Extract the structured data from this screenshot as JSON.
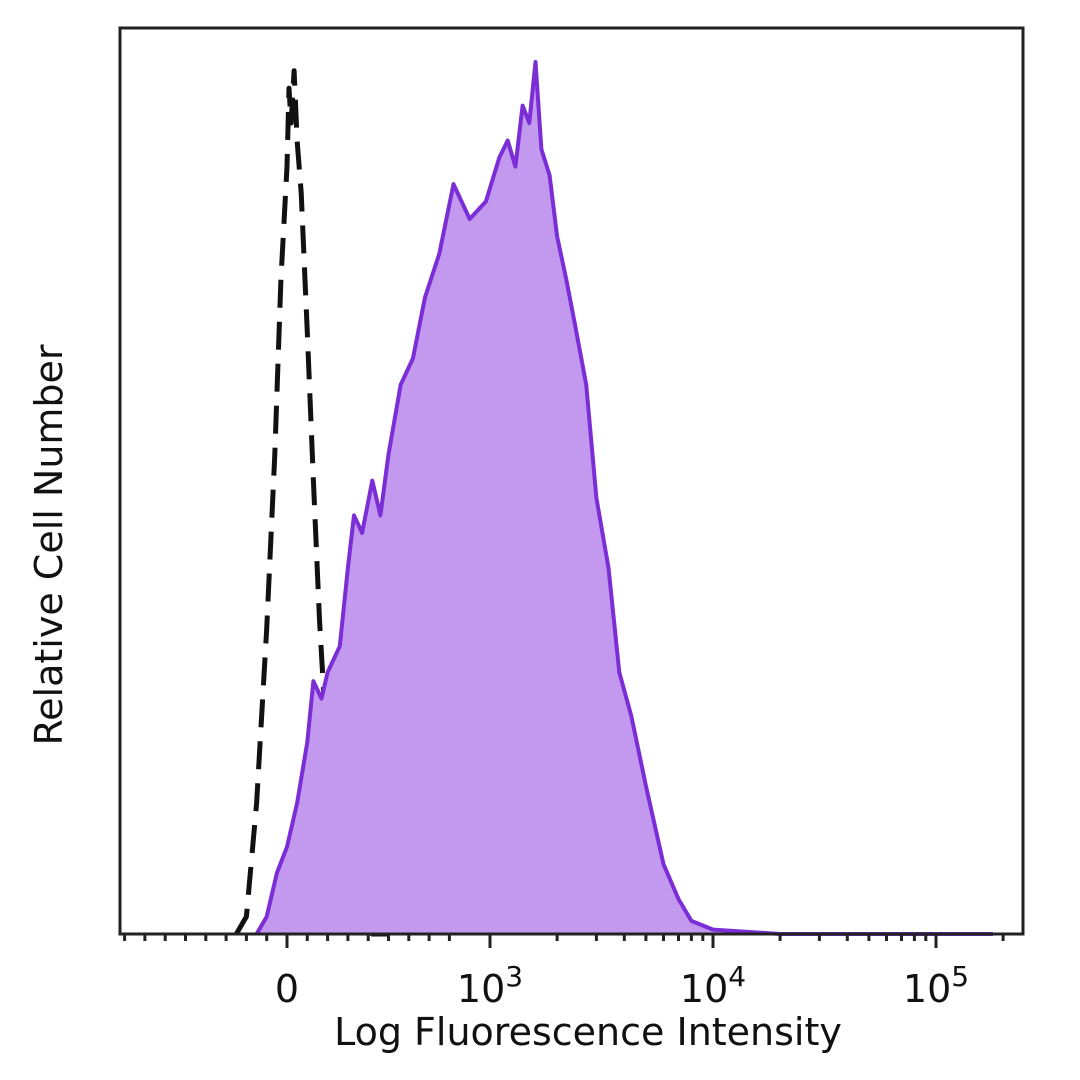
{
  "chart_data": {
    "type": "area",
    "title": "",
    "xlabel": "Log Fluorescence Intensity",
    "ylabel": "Relative Cell Number",
    "x_scale": "biexponential",
    "x_ticks": [
      {
        "value": 0,
        "base": "0",
        "exp": ""
      },
      {
        "value": 1000,
        "base": "10",
        "exp": "3"
      },
      {
        "value": 10000,
        "base": "10",
        "exp": "4"
      },
      {
        "value": 100000,
        "base": "10",
        "exp": "5"
      }
    ],
    "xlim": [
      -1000,
      200000
    ],
    "ylim": [
      0,
      1
    ],
    "y_ticks_shown": false,
    "grid": false,
    "legend": "none",
    "series": [
      {
        "style": "dashed-black-outline",
        "color": "#111111",
        "points": [
          [
            -250,
            0
          ],
          [
            -200,
            0.02
          ],
          [
            -150,
            0.15
          ],
          [
            -100,
            0.35
          ],
          [
            -60,
            0.55
          ],
          [
            -30,
            0.75
          ],
          [
            0,
            0.88
          ],
          [
            10,
            0.97
          ],
          [
            20,
            0.93
          ],
          [
            35,
            0.99
          ],
          [
            50,
            0.91
          ],
          [
            70,
            0.85
          ],
          [
            100,
            0.69
          ],
          [
            130,
            0.52
          ],
          [
            160,
            0.36
          ],
          [
            200,
            0.2
          ],
          [
            250,
            0.1
          ],
          [
            300,
            0.04
          ],
          [
            350,
            0.02
          ],
          [
            420,
            0.0
          ],
          [
            500,
            0.0
          ]
        ]
      },
      {
        "style": "filled",
        "color": "#7b2ed6",
        "fill": "#c398ef",
        "points": [
          [
            -150,
            0
          ],
          [
            -100,
            0.02
          ],
          [
            -50,
            0.07
          ],
          [
            0,
            0.1
          ],
          [
            50,
            0.15
          ],
          [
            100,
            0.22
          ],
          [
            130,
            0.29
          ],
          [
            170,
            0.27
          ],
          [
            200,
            0.3
          ],
          [
            260,
            0.33
          ],
          [
            300,
            0.42
          ],
          [
            330,
            0.48
          ],
          [
            370,
            0.46
          ],
          [
            420,
            0.52
          ],
          [
            460,
            0.48
          ],
          [
            500,
            0.55
          ],
          [
            560,
            0.63
          ],
          [
            620,
            0.66
          ],
          [
            680,
            0.73
          ],
          [
            750,
            0.78
          ],
          [
            820,
            0.86
          ],
          [
            900,
            0.82
          ],
          [
            980,
            0.84
          ],
          [
            1100,
            0.89
          ],
          [
            1200,
            0.91
          ],
          [
            1300,
            0.88
          ],
          [
            1400,
            0.95
          ],
          [
            1500,
            0.93
          ],
          [
            1600,
            1.0
          ],
          [
            1700,
            0.9
          ],
          [
            1850,
            0.87
          ],
          [
            2000,
            0.8
          ],
          [
            2200,
            0.75
          ],
          [
            2400,
            0.7
          ],
          [
            2700,
            0.63
          ],
          [
            3000,
            0.5
          ],
          [
            3400,
            0.42
          ],
          [
            3800,
            0.3
          ],
          [
            4300,
            0.25
          ],
          [
            5000,
            0.17
          ],
          [
            6000,
            0.08
          ],
          [
            7000,
            0.04
          ],
          [
            8000,
            0.015
          ],
          [
            10000,
            0.005
          ],
          [
            20000,
            0.0
          ],
          [
            100000,
            0.0
          ],
          [
            180000,
            0.0
          ]
        ]
      }
    ]
  }
}
